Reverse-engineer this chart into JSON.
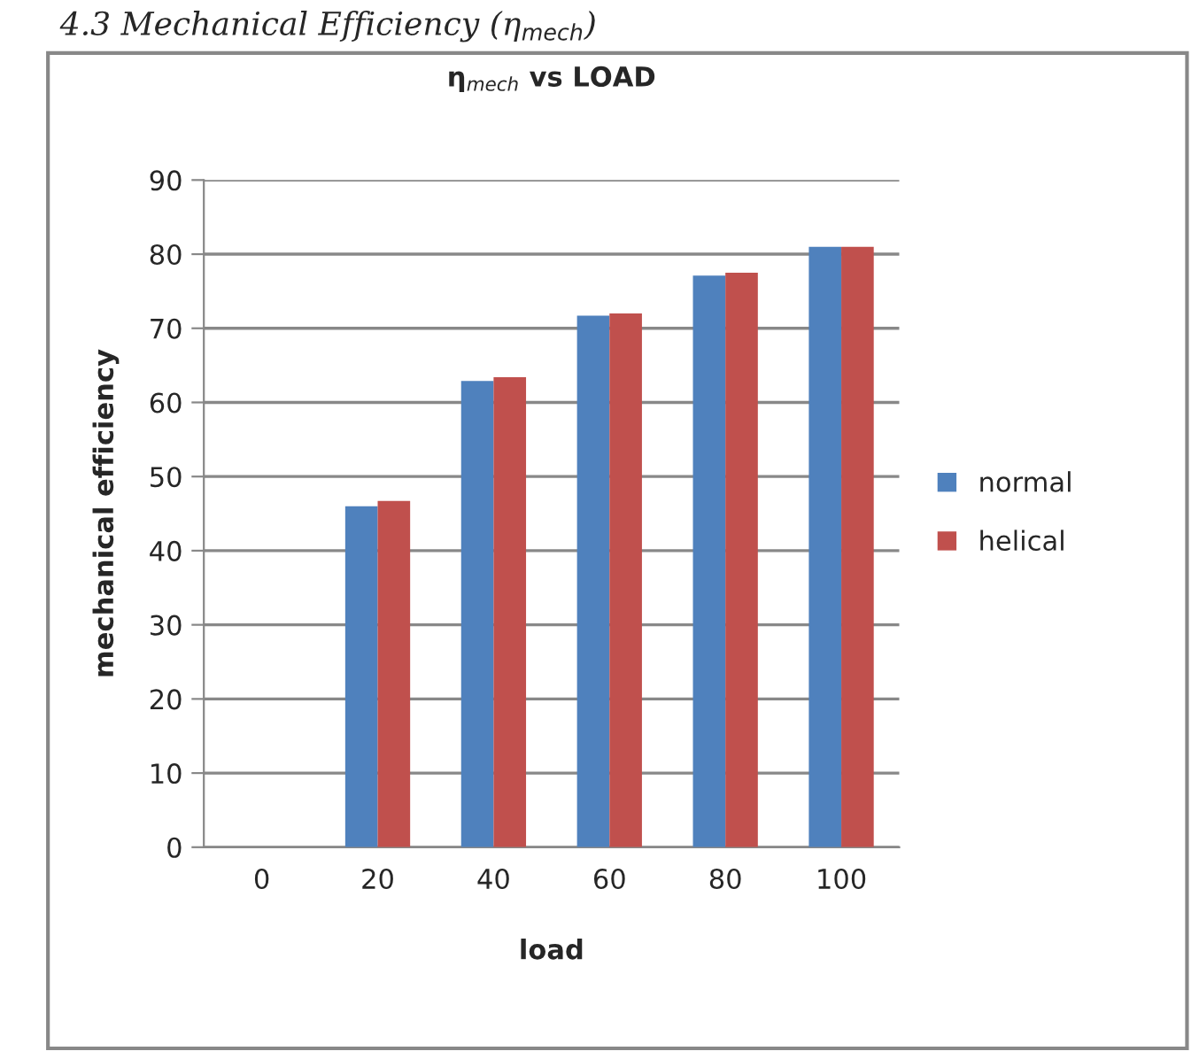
{
  "chart_data": {
    "type": "bar",
    "title": "η$_{mech}$ vs LOAD",
    "xlabel": "load",
    "ylabel": "mechanical efficiency",
    "annotations": [
      "4.3 Mechanical Efficiency (η$_{mech}$)"
    ],
    "categories": [
      "0",
      "20",
      "40",
      "60",
      "80",
      "100"
    ],
    "series": [
      {
        "name": "normal",
        "color": "#4f81bd",
        "values": [
          0,
          46,
          62.9,
          71.7,
          77.1,
          81
        ]
      },
      {
        "name": "helical",
        "color": "#c0504d",
        "values": [
          0,
          46.7,
          63.4,
          72,
          77.5,
          81
        ]
      }
    ],
    "ylim": [
      0,
      90
    ],
    "yticks": [
      0,
      10,
      20,
      30,
      40,
      50,
      60,
      70,
      80,
      90
    ],
    "grid": "y",
    "legend": "right"
  }
}
